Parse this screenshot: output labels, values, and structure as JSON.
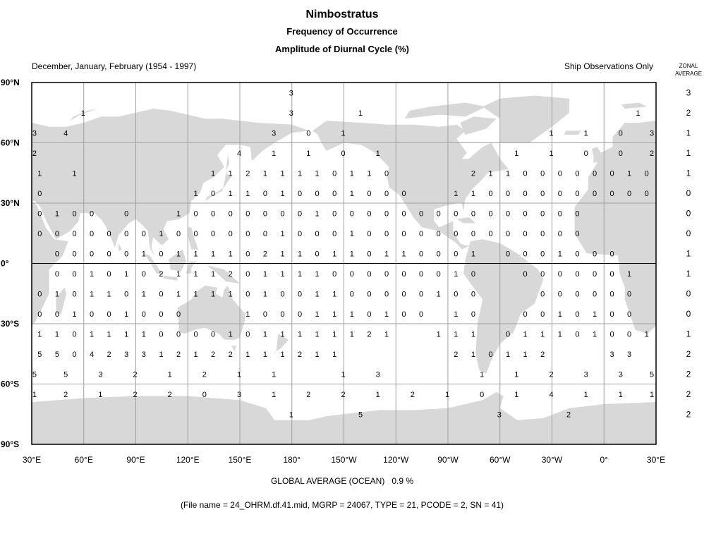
{
  "header": {
    "title": "Nimbostratus",
    "subtitle1": "Frequency of Occurrence",
    "subtitle2": "Amplitude of Diurnal Cycle (%)",
    "season": "December, January, February (1954 - 1997)",
    "source_note": "Ship Observations Only",
    "zonal_heading_line1": "ZONAL",
    "zonal_heading_line2": "AVERAGE"
  },
  "footer": {
    "global_average_label": "GLOBAL AVERAGE (OCEAN)",
    "global_average_value": "0.9 %",
    "file_info": "(File name = 24_OHRM.df.41.mid, MGRP = 24067, TYPE = 21, PCODE = 2, SN = 41)"
  },
  "colors": {
    "land": "#d8d8d8",
    "ocean": "#ffffff",
    "grid": "#a0a0a0",
    "frame": "#000000"
  },
  "chart_data": {
    "type": "map",
    "projection": "equirectangular",
    "lon_range": [
      30,
      390
    ],
    "lat_range": [
      -90,
      90
    ],
    "grid": true,
    "x_tick_labels": [
      "30°E",
      "60°E",
      "90°E",
      "120°E",
      "150°E",
      "180°",
      "150°W",
      "120°W",
      "90°W",
      "60°W",
      "30°W",
      "0°",
      "30°E"
    ],
    "y_tick_labels": [
      "90°N",
      "60°N",
      "30°N",
      "0°",
      "30°S",
      "60°S",
      "90°S"
    ],
    "units": "%",
    "regular_rows": [
      {
        "lat": 45,
        "lon_start": 35,
        "lon_step": 10,
        "values": [
          1,
          null,
          1,
          null,
          null,
          null,
          null,
          null,
          null,
          null,
          1,
          1,
          2,
          1,
          1,
          1,
          1,
          0,
          1,
          1,
          0,
          null,
          null,
          null,
          null,
          2,
          1,
          1,
          0,
          0,
          0,
          0,
          0,
          0,
          1,
          0
        ]
      },
      {
        "lat": 35,
        "lon_start": 35,
        "lon_step": 10,
        "values": [
          0,
          null,
          null,
          null,
          null,
          null,
          null,
          null,
          null,
          1,
          0,
          1,
          1,
          0,
          1,
          0,
          0,
          0,
          1,
          0,
          0,
          0,
          null,
          null,
          1,
          1,
          0,
          0,
          0,
          0,
          0,
          0,
          0,
          0,
          0,
          0
        ]
      },
      {
        "lat": 25,
        "lon_start": 35,
        "lon_step": 10,
        "values": [
          0,
          1,
          0,
          0,
          null,
          0,
          null,
          null,
          1,
          0,
          0,
          0,
          0,
          0,
          0,
          0,
          1,
          0,
          0,
          0,
          0,
          0,
          0,
          0,
          0,
          0,
          0,
          0,
          0,
          0,
          0,
          0,
          null,
          null,
          null,
          null
        ]
      },
      {
        "lat": 15,
        "lon_start": 35,
        "lon_step": 10,
        "values": [
          0,
          0,
          0,
          0,
          0,
          0,
          0,
          1,
          0,
          0,
          0,
          0,
          0,
          0,
          1,
          0,
          0,
          0,
          1,
          0,
          0,
          0,
          0,
          0,
          0,
          0,
          0,
          0,
          0,
          0,
          0,
          0,
          null,
          null,
          null,
          null
        ]
      },
      {
        "lat": 5,
        "lon_start": 35,
        "lon_step": 10,
        "values": [
          null,
          0,
          0,
          0,
          0,
          0,
          1,
          0,
          1,
          1,
          1,
          1,
          0,
          2,
          1,
          1,
          0,
          1,
          1,
          0,
          1,
          1,
          0,
          0,
          0,
          1,
          null,
          0,
          0,
          0,
          1,
          0,
          0,
          0,
          null,
          null
        ]
      },
      {
        "lat": -5,
        "lon_start": 35,
        "lon_step": 10,
        "values": [
          null,
          0,
          0,
          1,
          0,
          1,
          0,
          2,
          1,
          1,
          1,
          2,
          0,
          1,
          1,
          1,
          1,
          0,
          0,
          0,
          0,
          0,
          0,
          0,
          1,
          0,
          null,
          null,
          0,
          0,
          0,
          0,
          0,
          0,
          1,
          null
        ]
      },
      {
        "lat": -15,
        "lon_start": 35,
        "lon_step": 10,
        "values": [
          0,
          1,
          0,
          1,
          1,
          0,
          1,
          0,
          1,
          1,
          1,
          1,
          0,
          1,
          0,
          0,
          1,
          1,
          0,
          0,
          0,
          0,
          0,
          1,
          0,
          0,
          null,
          null,
          null,
          0,
          0,
          0,
          0,
          0,
          0,
          null
        ]
      },
      {
        "lat": -25,
        "lon_start": 35,
        "lon_step": 10,
        "values": [
          0,
          0,
          1,
          0,
          0,
          1,
          0,
          0,
          0,
          null,
          null,
          null,
          1,
          0,
          0,
          0,
          1,
          1,
          1,
          0,
          1,
          0,
          0,
          null,
          1,
          0,
          null,
          null,
          0,
          0,
          1,
          0,
          1,
          0,
          0,
          null
        ]
      },
      {
        "lat": -35,
        "lon_start": 35,
        "lon_step": 10,
        "values": [
          1,
          1,
          0,
          1,
          1,
          1,
          1,
          0,
          0,
          0,
          0,
          1,
          0,
          1,
          1,
          1,
          1,
          1,
          1,
          2,
          1,
          null,
          null,
          1,
          1,
          1,
          null,
          0,
          1,
          1,
          1,
          0,
          1,
          0,
          0,
          1
        ]
      },
      {
        "lat": -45,
        "lon_start": 35,
        "lon_step": 10,
        "values": [
          5,
          5,
          0,
          4,
          2,
          3,
          3,
          1,
          2,
          1,
          2,
          2,
          1,
          1,
          1,
          2,
          1,
          1,
          null,
          null,
          null,
          null,
          null,
          null,
          2,
          1,
          0,
          1,
          1,
          2,
          null,
          null,
          null,
          3,
          3,
          null
        ]
      }
    ],
    "sparse_rows": [
      {
        "lat": 85,
        "cells": [
          [
            180,
            3
          ]
        ]
      },
      {
        "lat": 75,
        "cells": [
          [
            60,
            1
          ],
          [
            180,
            3
          ],
          [
            -140,
            1
          ],
          [
            20,
            1
          ]
        ]
      },
      {
        "lat": 65,
        "cells": [
          [
            32,
            3
          ],
          [
            50,
            4
          ],
          [
            170,
            3
          ],
          [
            -170,
            0
          ],
          [
            -150,
            1
          ],
          [
            -30,
            1
          ],
          [
            -10,
            1
          ],
          [
            10,
            0
          ],
          [
            28,
            3
          ]
        ]
      },
      {
        "lat": 55,
        "cells": [
          [
            32,
            2
          ],
          [
            150,
            4
          ],
          [
            170,
            1
          ],
          [
            -170,
            1
          ],
          [
            -150,
            0
          ],
          [
            -130,
            1
          ],
          [
            -50,
            1
          ],
          [
            -30,
            1
          ],
          [
            -10,
            0
          ],
          [
            10,
            0
          ],
          [
            28,
            2
          ]
        ]
      },
      {
        "lat": -55,
        "cells": [
          [
            32,
            5
          ],
          [
            50,
            5
          ],
          [
            70,
            3
          ],
          [
            90,
            2
          ],
          [
            110,
            1
          ],
          [
            130,
            2
          ],
          [
            150,
            1
          ],
          [
            170,
            1
          ],
          [
            -150,
            1
          ],
          [
            -130,
            3
          ],
          [
            -70,
            1
          ],
          [
            -50,
            1
          ],
          [
            -30,
            2
          ],
          [
            -10,
            3
          ],
          [
            10,
            3
          ],
          [
            28,
            5
          ]
        ]
      },
      {
        "lat": -65,
        "cells": [
          [
            32,
            1
          ],
          [
            50,
            2
          ],
          [
            70,
            1
          ],
          [
            90,
            2
          ],
          [
            110,
            2
          ],
          [
            130,
            0
          ],
          [
            150,
            3
          ],
          [
            170,
            1
          ],
          [
            -170,
            2
          ],
          [
            -150,
            2
          ],
          [
            -130,
            1
          ],
          [
            -110,
            2
          ],
          [
            -90,
            1
          ],
          [
            -70,
            0
          ],
          [
            -50,
            1
          ],
          [
            -30,
            4
          ],
          [
            -10,
            1
          ],
          [
            10,
            1
          ],
          [
            28,
            1
          ]
        ]
      },
      {
        "lat": -75,
        "cells": [
          [
            180,
            1
          ],
          [
            -140,
            5
          ],
          [
            -60,
            3
          ],
          [
            -20,
            2
          ]
        ]
      }
    ],
    "zonal_average": {
      "lats": [
        85,
        75,
        65,
        55,
        45,
        35,
        25,
        15,
        5,
        -5,
        -15,
        -25,
        -35,
        -45,
        -55,
        -65,
        -75
      ],
      "values": [
        3,
        2,
        1,
        1,
        1,
        0,
        0,
        0,
        1,
        1,
        0,
        0,
        1,
        2,
        2,
        2,
        2
      ]
    }
  }
}
